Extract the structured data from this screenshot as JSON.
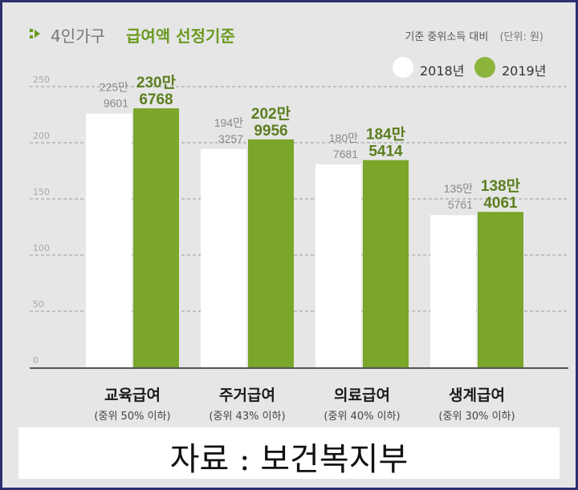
{
  "title": {
    "prefix": "4인가구",
    "main": "급여액 선정기준"
  },
  "unit_note": {
    "basis": "기준 중위소득 대비",
    "unit": "(단위: 원)"
  },
  "legend": [
    {
      "label": "2018년",
      "color": "#ffffff"
    },
    {
      "label": "2019년",
      "color": "#8cb43c"
    }
  ],
  "colors": {
    "bar_2018": "#ffffff",
    "bar_2019": "#7aa629",
    "label_2019": "#5b7f1f",
    "label_2018": "#888888"
  },
  "chart_data": {
    "type": "bar",
    "categories": [
      "교육급여",
      "주거급여",
      "의료급여",
      "생계급여"
    ],
    "category_sublabels": [
      "(중위 50% 이하)",
      "(중위 43% 이하)",
      "(중위 40% 이하)",
      "(중위 30% 이하)"
    ],
    "series": [
      {
        "name": "2018년",
        "values": [
          2259601,
          1943257,
          1807681,
          1355761
        ],
        "label_top": [
          "225만",
          "194만",
          "180만",
          "135만"
        ],
        "label_bottom": [
          "9601",
          "3257",
          "7681",
          "5761"
        ]
      },
      {
        "name": "2019년",
        "values": [
          2306768,
          2029956,
          1845414,
          1384061
        ],
        "label_top": [
          "230만",
          "202만",
          "184만",
          "138만"
        ],
        "label_bottom": [
          "6768",
          "9956",
          "5414",
          "4061"
        ]
      }
    ],
    "yticks": [
      "0",
      "50",
      "100",
      "150",
      "200",
      "250"
    ],
    "ylim": [
      0,
      2500000
    ],
    "grid": true,
    "legend_position": "top-right"
  },
  "source": "자료 : 보건복지부"
}
